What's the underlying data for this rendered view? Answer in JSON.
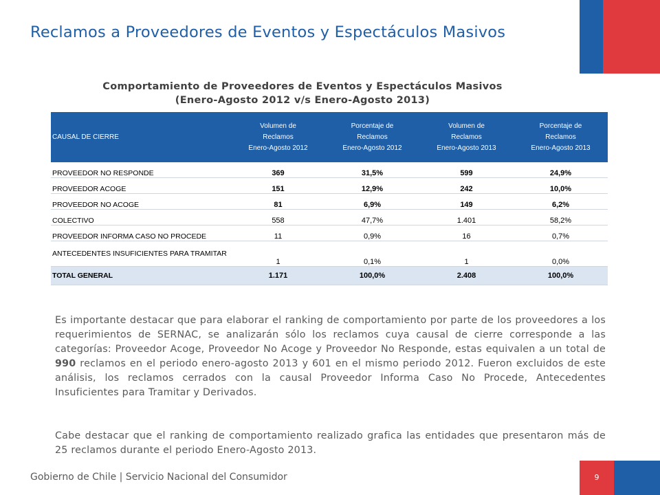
{
  "slide": {
    "title": "Reclamos a Proveedores de Eventos y Espectáculos Masivos",
    "page_number": "9"
  },
  "table": {
    "title_line1": "Comportamiento de Proveedores de Eventos y  Espectáculos Masivos",
    "title_line2": "(Enero-Agosto 2012 v/s Enero-Agosto 2013)",
    "headers": [
      "CAUSAL DE CIERRE",
      [
        "Volumen de",
        "Reclamos",
        "Enero-Agosto 2012"
      ],
      [
        "Porcentaje de",
        "Reclamos",
        "Enero-Agosto 2012"
      ],
      [
        "Volumen de",
        "Reclamos",
        "Enero-Agosto 2013"
      ],
      [
        "Porcentaje de",
        "Reclamos",
        "Enero-Agosto 2013"
      ]
    ],
    "rows": [
      [
        "PROVEEDOR NO RESPONDE",
        "369",
        "31,5%",
        "599",
        "24,9%"
      ],
      [
        "PROVEEDOR ACOGE",
        "151",
        "12,9%",
        "242",
        "10,0%"
      ],
      [
        "PROVEEDOR NO ACOGE",
        "81",
        "6,9%",
        "149",
        "6,2%"
      ],
      [
        "COLECTIVO",
        "558",
        "47,7%",
        "1.401",
        "58,2%"
      ],
      [
        "PROVEEDOR INFORMA CASO NO PROCEDE",
        "11",
        "0,9%",
        "16",
        "0,7%"
      ],
      [
        "ANTECEDENTES INSUFICIENTES PARA TRAMITAR",
        "1",
        "0,1%",
        "1",
        "0,0%"
      ],
      [
        "TOTAL GENERAL",
        "1.171",
        "100,0%",
        "2.408",
        "100,0%"
      ]
    ]
  },
  "body": {
    "p1_before": "Es importante destacar que para elaborar el ranking de comportamiento por parte de los proveedores a los requerimientos de SERNAC, se analizarán sólo los reclamos cuya causal de cierre corresponde a las categorías: Proveedor Acoge, Proveedor No Acoge y Proveedor No Responde, estas equivalen a un total de ",
    "p1_bold": "990",
    "p1_after": " reclamos en el periodo enero-agosto 2013 y 601 en el mismo periodo 2012. Fueron excluidos de este análisis, los reclamos cerrados con la causal Proveedor Informa Caso No Procede, Antecedentes Insuficientes para Tramitar y Derivados.",
    "p2": "Cabe destacar que el ranking de comportamiento realizado grafica las entidades que presentaron más de 25 reclamos durante el periodo Enero-Agosto 2013."
  },
  "footer": {
    "text": "Gobierno de Chile | Servicio Nacional del Consumidor"
  },
  "colors": {
    "brand_blue": "#1f5fa8",
    "brand_red": "#e03a3e",
    "total_row_bg": "#dbe5f1"
  }
}
